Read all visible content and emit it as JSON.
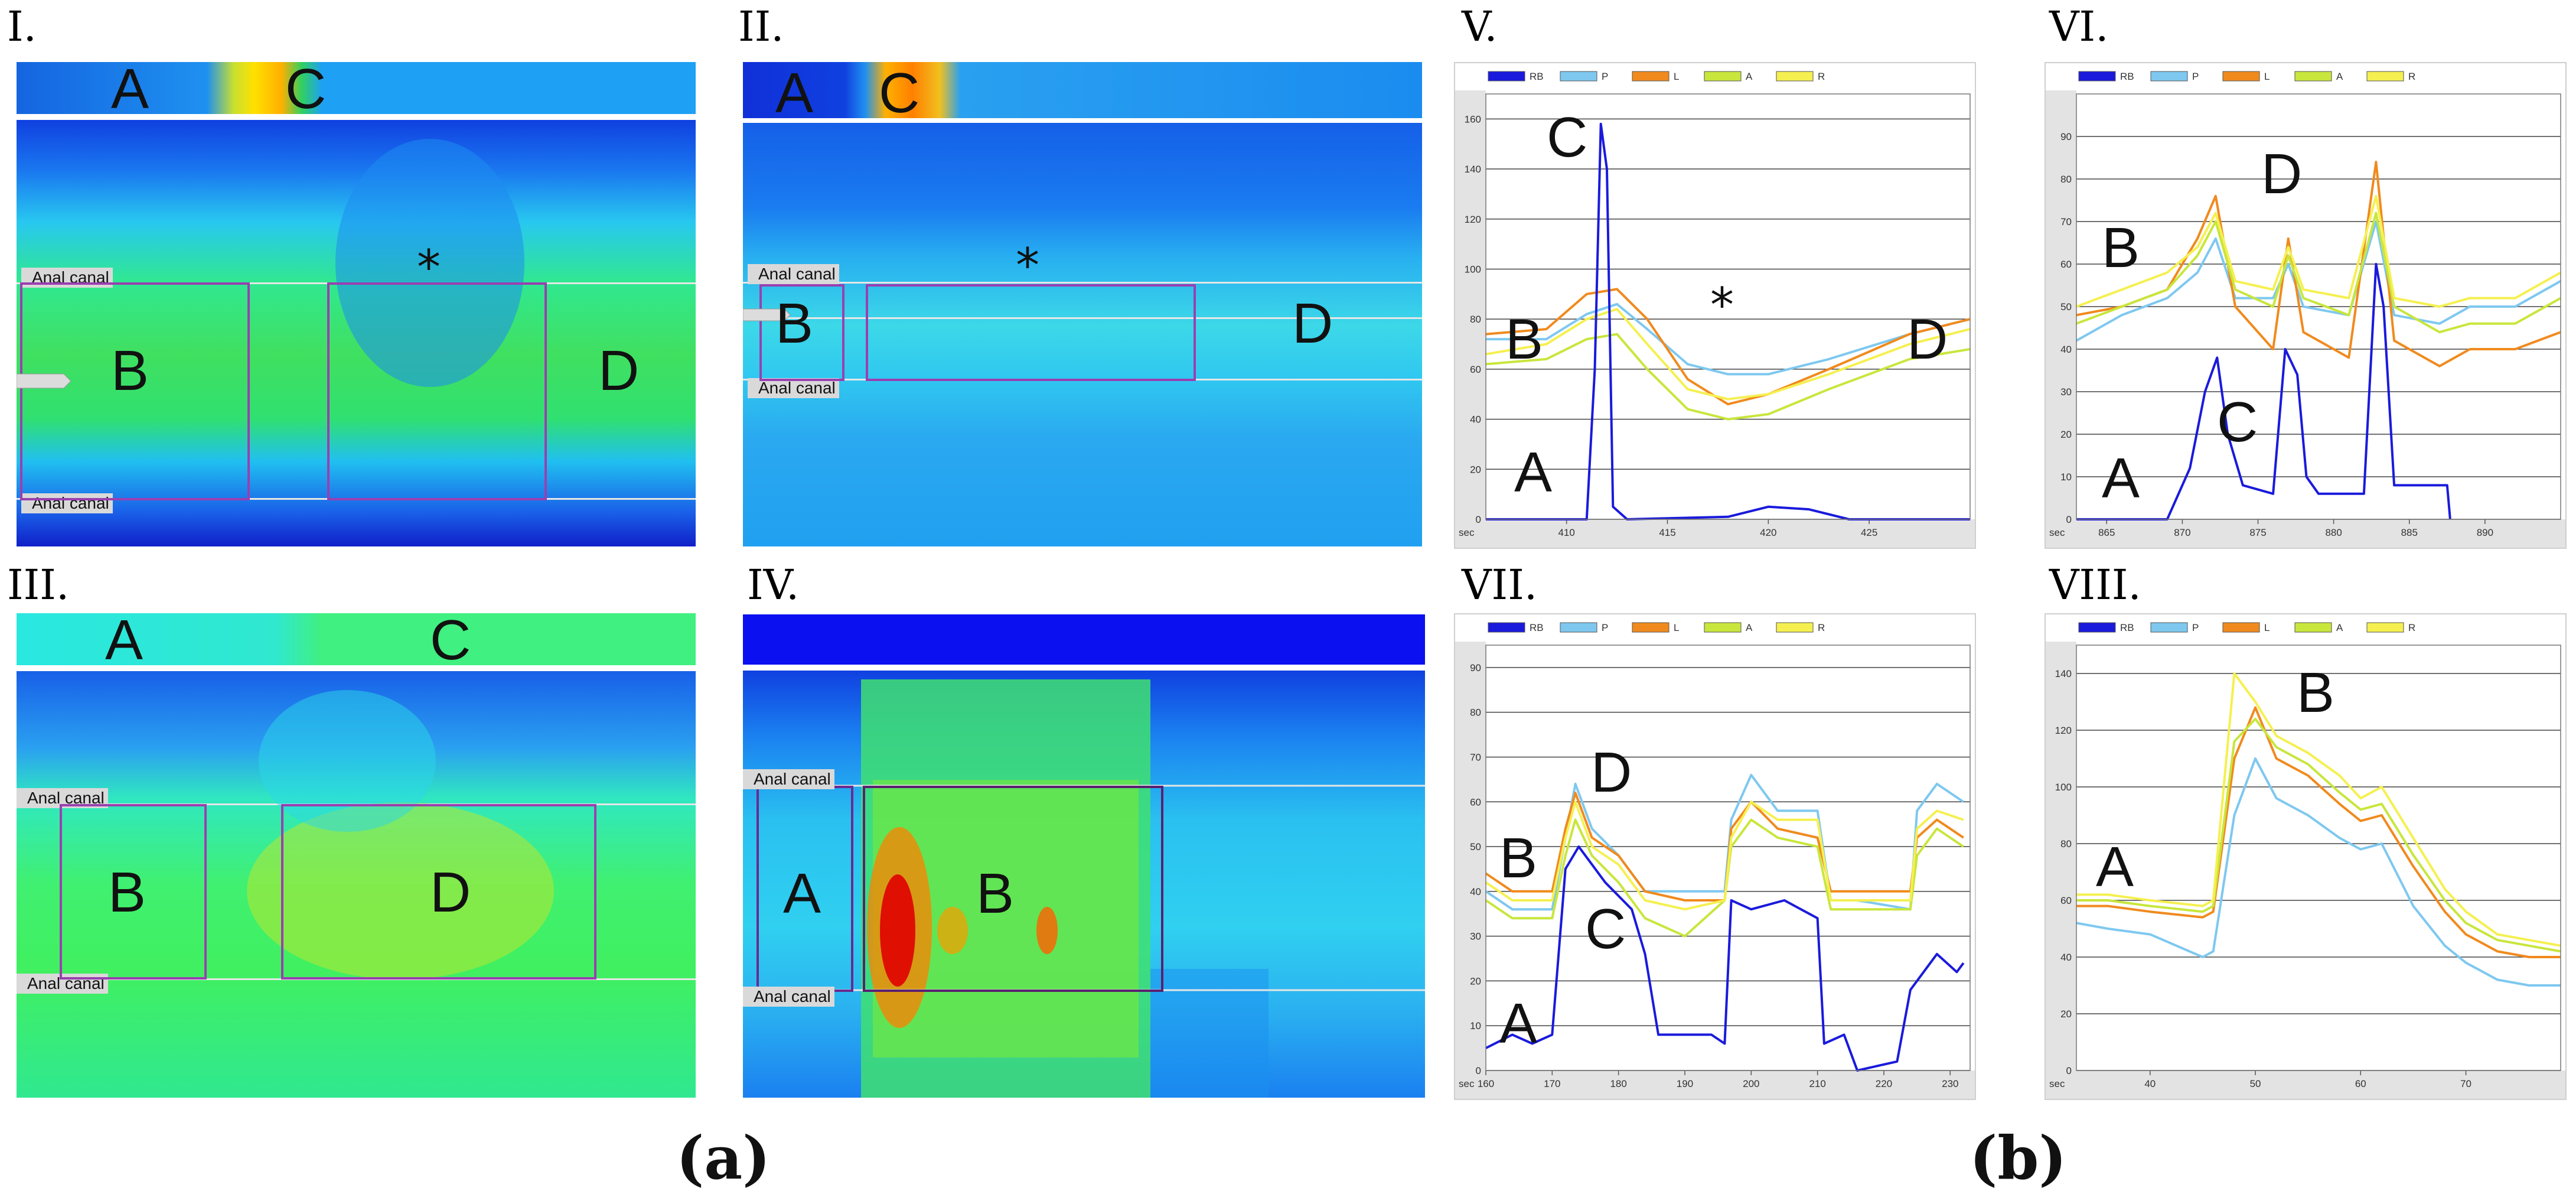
{
  "panel_labels": [
    "I.",
    "II.",
    "III.",
    "IV.",
    "V.",
    "VI.",
    "VII.",
    "VIII."
  ],
  "captions": {
    "a": "(a)",
    "b": "(b)"
  },
  "heatmaps": {
    "I": {
      "letters": [
        "A",
        "C",
        "B",
        "D"
      ],
      "star": "*",
      "canal_labels": [
        "Anal canal",
        "Anal canal"
      ]
    },
    "II": {
      "letters": [
        "A",
        "C",
        "B",
        "D"
      ],
      "star": "*",
      "canal_labels": [
        "Anal canal",
        "Anal canal"
      ]
    },
    "III": {
      "letters": [
        "A",
        "C",
        "B",
        "D"
      ],
      "canal_labels": [
        "Anal canal",
        "Anal canal"
      ]
    },
    "IV": {
      "letters": [
        "A",
        "B"
      ],
      "canal_labels": [
        "Anal canal",
        "Anal canal"
      ]
    }
  },
  "legend": [
    "RB",
    "P",
    "L",
    "A",
    "R"
  ],
  "colors": {
    "RB": "#1a1adc",
    "P": "#7ec8f0",
    "L": "#f08a1e",
    "A": "#c8e63c",
    "R": "#f5f050"
  },
  "chart_data": [
    {
      "id": "V",
      "type": "line",
      "xlabel": "sec",
      "ylim": [
        0,
        170
      ],
      "xlim": [
        406,
        430
      ],
      "yticks": [
        0,
        20,
        40,
        60,
        80,
        100,
        120,
        140,
        160
      ],
      "xticks": [
        410,
        415,
        420,
        425
      ],
      "annotations": [
        "C",
        "B",
        "*",
        "D",
        "A"
      ],
      "series": [
        {
          "name": "RB",
          "x": [
            406,
            411,
            411.4,
            411.7,
            412,
            412.3,
            413,
            418,
            420,
            422,
            424,
            430
          ],
          "y": [
            0,
            0,
            60,
            158,
            140,
            5,
            0,
            1,
            5,
            4,
            0,
            0
          ]
        },
        {
          "name": "P",
          "x": [
            406,
            409,
            411,
            412.5,
            414,
            416,
            418,
            420,
            423,
            427,
            430
          ],
          "y": [
            72,
            72,
            82,
            86,
            76,
            62,
            58,
            58,
            64,
            74,
            80
          ]
        },
        {
          "name": "L",
          "x": [
            406,
            409,
            411,
            412.5,
            414,
            416,
            418,
            420,
            423,
            427,
            430
          ],
          "y": [
            74,
            76,
            90,
            92,
            80,
            56,
            46,
            50,
            60,
            74,
            80
          ]
        },
        {
          "name": "A",
          "x": [
            406,
            409,
            411,
            412.5,
            414,
            416,
            418,
            420,
            423,
            427,
            430
          ],
          "y": [
            62,
            64,
            72,
            74,
            60,
            44,
            40,
            42,
            52,
            64,
            68
          ]
        },
        {
          "name": "R",
          "x": [
            406,
            409,
            411,
            412.5,
            414,
            416,
            418,
            420,
            423,
            427,
            430
          ],
          "y": [
            66,
            70,
            80,
            84,
            70,
            52,
            48,
            50,
            58,
            70,
            76
          ]
        }
      ]
    },
    {
      "id": "VI",
      "type": "line",
      "xlabel": "sec",
      "ylim": [
        0,
        100
      ],
      "xlim": [
        863,
        895
      ],
      "yticks": [
        0,
        10,
        20,
        30,
        40,
        50,
        60,
        70,
        80,
        90
      ],
      "xticks": [
        865,
        870,
        875,
        880,
        885,
        890
      ],
      "annotations": [
        "B",
        "D",
        "C",
        "A"
      ],
      "series": [
        {
          "name": "RB",
          "x": [
            863,
            869,
            870.5,
            871.5,
            872.3,
            873,
            874,
            876,
            876.8,
            877.6,
            878.2,
            879,
            882,
            882.8,
            883.3,
            884,
            887.5,
            887.7
          ],
          "y": [
            0,
            0,
            12,
            30,
            38,
            20,
            8,
            6,
            40,
            34,
            10,
            6,
            6,
            60,
            50,
            8,
            8,
            0
          ]
        },
        {
          "name": "P",
          "x": [
            863,
            866,
            869,
            871,
            872.2,
            873.5,
            876,
            877,
            878,
            881,
            882.8,
            884,
            887,
            889,
            892,
            895
          ],
          "y": [
            42,
            48,
            52,
            58,
            66,
            52,
            52,
            60,
            50,
            48,
            70,
            48,
            46,
            50,
            50,
            56
          ]
        },
        {
          "name": "L",
          "x": [
            863,
            866,
            869,
            871,
            872.2,
            873.5,
            876,
            877,
            878,
            881,
            882.8,
            884,
            887,
            889,
            892,
            895
          ],
          "y": [
            48,
            50,
            54,
            66,
            76,
            50,
            40,
            66,
            44,
            38,
            84,
            42,
            36,
            40,
            40,
            44
          ]
        },
        {
          "name": "A",
          "x": [
            863,
            866,
            869,
            871,
            872.2,
            873.5,
            876,
            877,
            878,
            881,
            882.8,
            884,
            887,
            889,
            892,
            895
          ],
          "y": [
            46,
            50,
            54,
            62,
            70,
            54,
            50,
            62,
            52,
            48,
            72,
            50,
            44,
            46,
            46,
            52
          ]
        },
        {
          "name": "R",
          "x": [
            863,
            866,
            869,
            871,
            872.2,
            873.5,
            876,
            877,
            878,
            881,
            882.8,
            884,
            887,
            889,
            892,
            895
          ],
          "y": [
            50,
            54,
            58,
            64,
            72,
            56,
            54,
            64,
            54,
            52,
            76,
            52,
            50,
            52,
            52,
            58
          ]
        }
      ]
    },
    {
      "id": "VII",
      "type": "line",
      "xlabel": "sec",
      "ylim": [
        0,
        95
      ],
      "xlim": [
        160,
        233
      ],
      "yticks": [
        0,
        10,
        20,
        30,
        40,
        50,
        60,
        70,
        80,
        90
      ],
      "xticks": [
        160,
        170,
        180,
        190,
        200,
        210,
        220,
        230
      ],
      "annotations": [
        "D",
        "B",
        "C",
        "A"
      ],
      "series": [
        {
          "name": "RB",
          "x": [
            160,
            164,
            167,
            170,
            172,
            174,
            178,
            182,
            184,
            186,
            194,
            196,
            197,
            200,
            205,
            210,
            211,
            214,
            216,
            222,
            224,
            228,
            231,
            232
          ],
          "y": [
            5,
            8,
            6,
            8,
            45,
            50,
            42,
            36,
            26,
            8,
            8,
            6,
            38,
            36,
            38,
            34,
            6,
            8,
            0,
            2,
            18,
            26,
            22,
            24
          ]
        },
        {
          "name": "P",
          "x": [
            160,
            164,
            170,
            172,
            173.5,
            176,
            180,
            184,
            190,
            196,
            197,
            200,
            204,
            210,
            212,
            216,
            224,
            225,
            228,
            232
          ],
          "y": [
            40,
            36,
            36,
            52,
            64,
            54,
            48,
            40,
            40,
            40,
            56,
            66,
            58,
            58,
            38,
            38,
            36,
            58,
            64,
            60
          ]
        },
        {
          "name": "L",
          "x": [
            160,
            164,
            170,
            172,
            173.5,
            176,
            180,
            184,
            190,
            196,
            197,
            200,
            204,
            210,
            212,
            216,
            224,
            225,
            228,
            232
          ],
          "y": [
            44,
            40,
            40,
            54,
            62,
            52,
            48,
            40,
            38,
            38,
            54,
            60,
            54,
            52,
            40,
            40,
            40,
            52,
            56,
            52
          ]
        },
        {
          "name": "A",
          "x": [
            160,
            164,
            170,
            172,
            173.5,
            176,
            180,
            184,
            190,
            196,
            197,
            200,
            204,
            210,
            212,
            216,
            224,
            225,
            228,
            232
          ],
          "y": [
            38,
            34,
            34,
            48,
            56,
            48,
            42,
            34,
            30,
            38,
            50,
            56,
            52,
            50,
            36,
            36,
            36,
            48,
            54,
            50
          ]
        },
        {
          "name": "R",
          "x": [
            160,
            164,
            170,
            172,
            173.5,
            176,
            180,
            184,
            190,
            196,
            197,
            200,
            204,
            210,
            212,
            216,
            224,
            225,
            228,
            232
          ],
          "y": [
            42,
            38,
            38,
            52,
            60,
            50,
            46,
            38,
            36,
            38,
            52,
            60,
            56,
            56,
            38,
            38,
            38,
            54,
            58,
            56
          ]
        }
      ]
    },
    {
      "id": "VIII",
      "type": "line",
      "xlabel": "sec",
      "ylim": [
        0,
        150
      ],
      "xlim": [
        33,
        79
      ],
      "yticks": [
        0,
        20,
        40,
        60,
        80,
        100,
        120,
        140
      ],
      "xticks": [
        40,
        50,
        60,
        70
      ],
      "annotations": [
        "B",
        "A"
      ],
      "series": [
        {
          "name": "P",
          "x": [
            33,
            36,
            40,
            45,
            46,
            48,
            50,
            52,
            55,
            58,
            60,
            62,
            65,
            68,
            70,
            73,
            76,
            79
          ],
          "y": [
            52,
            50,
            48,
            40,
            42,
            90,
            110,
            96,
            90,
            82,
            78,
            80,
            58,
            44,
            38,
            32,
            30,
            30
          ]
        },
        {
          "name": "L",
          "x": [
            33,
            36,
            40,
            45,
            46,
            48,
            50,
            52,
            55,
            58,
            60,
            62,
            65,
            68,
            70,
            73,
            76,
            79
          ],
          "y": [
            58,
            58,
            56,
            54,
            56,
            110,
            128,
            110,
            104,
            94,
            88,
            90,
            72,
            56,
            48,
            42,
            40,
            40
          ]
        },
        {
          "name": "A",
          "x": [
            33,
            36,
            40,
            45,
            46,
            48,
            50,
            52,
            55,
            58,
            60,
            62,
            65,
            68,
            70,
            73,
            76,
            79
          ],
          "y": [
            60,
            60,
            58,
            56,
            58,
            116,
            124,
            114,
            108,
            98,
            92,
            94,
            76,
            60,
            52,
            46,
            44,
            42
          ]
        },
        {
          "name": "R",
          "x": [
            33,
            36,
            40,
            45,
            46,
            48,
            50,
            52,
            55,
            58,
            60,
            62,
            65,
            68,
            70,
            73,
            76,
            79
          ],
          "y": [
            62,
            62,
            60,
            58,
            60,
            140,
            130,
            118,
            112,
            104,
            96,
            100,
            82,
            64,
            56,
            48,
            46,
            44
          ]
        }
      ]
    }
  ]
}
